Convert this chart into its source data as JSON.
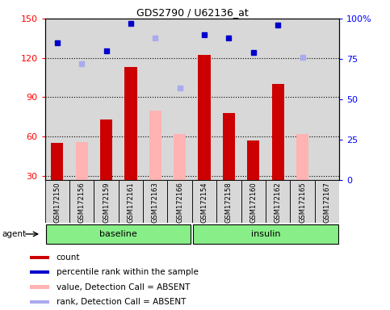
{
  "title": "GDS2790 / U62136_at",
  "samples": [
    "GSM172150",
    "GSM172156",
    "GSM172159",
    "GSM172161",
    "GSM172163",
    "GSM172166",
    "GSM172154",
    "GSM172158",
    "GSM172160",
    "GSM172162",
    "GSM172165",
    "GSM172167"
  ],
  "count_present": [
    55,
    null,
    73,
    113,
    null,
    null,
    122,
    78,
    57,
    100,
    null,
    null
  ],
  "count_absent": [
    null,
    56,
    null,
    null,
    80,
    62,
    null,
    null,
    null,
    null,
    62,
    null
  ],
  "percentile_present": [
    85,
    null,
    80,
    97,
    null,
    null,
    90,
    88,
    79,
    96,
    null,
    null
  ],
  "percentile_absent": [
    null,
    72,
    null,
    null,
    88,
    57,
    null,
    null,
    null,
    null,
    76,
    null
  ],
  "bar_color_present": "#cc0000",
  "bar_color_absent": "#ffb3b3",
  "dot_color_present": "#0000cc",
  "dot_color_absent": "#aaaaee",
  "ylim_left": [
    27,
    150
  ],
  "ylim_right": [
    0,
    100
  ],
  "yticks_left": [
    30,
    60,
    90,
    120,
    150
  ],
  "yticks_right": [
    0,
    25,
    50,
    75,
    100
  ],
  "ytick_labels_left": [
    "30",
    "60",
    "90",
    "120",
    "150"
  ],
  "ytick_labels_right": [
    "0",
    "25",
    "50",
    "75",
    "100%"
  ],
  "group_color": "#88ee88",
  "group_border": "#000000",
  "agent_label": "agent",
  "legend_items": [
    {
      "label": "count",
      "color": "#cc0000"
    },
    {
      "label": "percentile rank within the sample",
      "color": "#0000cc"
    },
    {
      "label": "value, Detection Call = ABSENT",
      "color": "#ffb3b3"
    },
    {
      "label": "rank, Detection Call = ABSENT",
      "color": "#aaaaee"
    }
  ],
  "bar_width": 0.5,
  "dot_size": 5,
  "chart_bg": "#d8d8d8",
  "fig_bg": "#ffffff"
}
